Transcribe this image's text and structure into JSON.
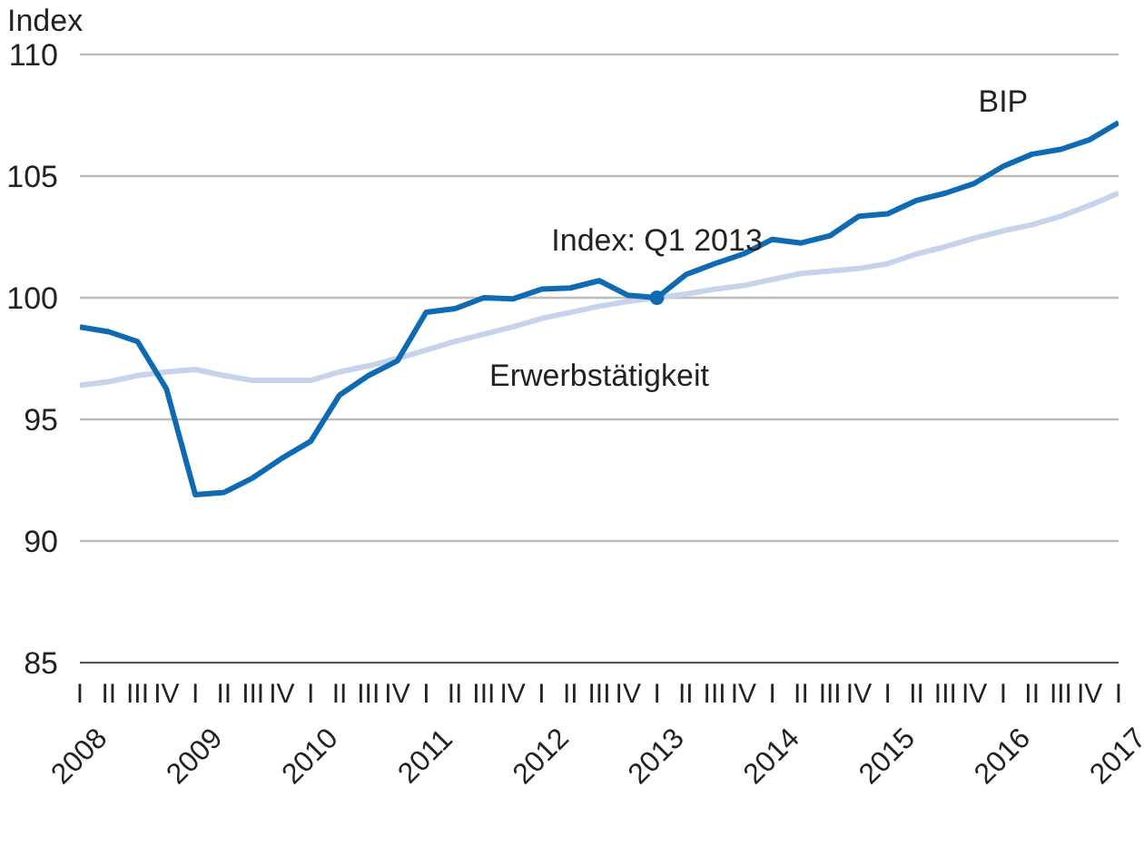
{
  "chart_data": {
    "type": "line",
    "ylabel": "Index",
    "categories": [
      "I\n2008",
      "II",
      "III",
      "IV",
      "I\n2009",
      "II",
      "III",
      "IV",
      "I\n2010",
      "II",
      "III",
      "IV",
      "I\n2011",
      "II",
      "III",
      "IV",
      "I\n2012",
      "II",
      "III",
      "IV",
      "I\n2013",
      "II",
      "III",
      "IV",
      "I\n2014",
      "II",
      "III",
      "IV",
      "I\n2015",
      "II",
      "III",
      "IV",
      "I\n2016",
      "II",
      "III",
      "IV",
      "I\n2017"
    ],
    "series": [
      {
        "name": "Erwerbstätigkeit",
        "color": "#c5d3ec",
        "values": [
          96.4,
          96.55,
          96.8,
          96.95,
          97.05,
          96.8,
          96.6,
          96.6,
          96.6,
          96.95,
          97.2,
          97.5,
          97.85,
          98.2,
          98.5,
          98.8,
          99.15,
          99.4,
          99.65,
          99.85,
          100,
          100.15,
          100.35,
          100.5,
          100.75,
          101.0,
          101.1,
          101.2,
          101.4,
          101.8,
          102.1,
          102.45,
          102.75,
          103.0,
          103.35,
          103.8,
          104.3
        ]
      },
      {
        "name": "BIP",
        "color": "#0d6ab3",
        "values": [
          98.8,
          98.6,
          98.2,
          96.25,
          91.9,
          92.0,
          92.6,
          93.4,
          94.1,
          96.0,
          96.8,
          97.4,
          99.4,
          99.55,
          100.0,
          99.95,
          100.35,
          100.4,
          100.7,
          100.1,
          100,
          100.95,
          101.4,
          101.8,
          102.4,
          102.25,
          102.55,
          103.35,
          103.45,
          104.0,
          104.3,
          104.7,
          105.4,
          105.9,
          106.1,
          106.5,
          107.2
        ]
      }
    ],
    "ylim": [
      85,
      110
    ],
    "yticks": [
      85,
      90,
      95,
      100,
      105,
      110
    ],
    "grid": "y",
    "legend": false,
    "marker": "none",
    "line_style": "solid",
    "annotations": [
      {
        "text": "Index: Q1 2013",
        "x": "I\n2013",
        "y": 100
      }
    ]
  }
}
